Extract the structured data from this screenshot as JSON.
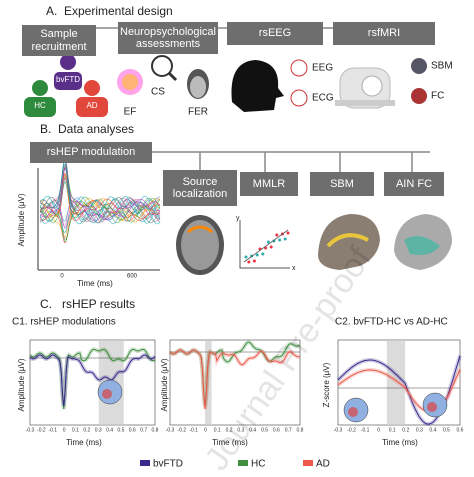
{
  "panel_a": {
    "letter": "A.",
    "title": "Experimental design",
    "steps": [
      "Sample recruitment",
      "Neuropsychological assessments",
      "rsEEG",
      "rsfMRI"
    ],
    "groups": [
      "bvFTD",
      "HC",
      "AD"
    ],
    "assessments": [
      "EF",
      "CS",
      "FER"
    ],
    "signals": [
      "EEG",
      "ECG"
    ],
    "mri": [
      "SBM",
      "FC"
    ]
  },
  "panel_b": {
    "letter": "B.",
    "title": "Data analyses",
    "main": "rsHEP modulation",
    "analyses": [
      "Source localization",
      "MMLR",
      "SBM",
      "AIN FC"
    ],
    "y_label": "Amplitude (μV)",
    "x_label": "Time (ms)",
    "x_ticks": [
      "0",
      "600"
    ],
    "scatter_axes": [
      "y",
      "x"
    ]
  },
  "panel_c": {
    "letter": "C.",
    "title": "rsHEP results",
    "c1_title": "C1. rsHEP modulations",
    "c2_title": "C2. bvFTD-HC vs AD-HC",
    "y_label": "Amplitude (μV)",
    "z_label": "Z-score (μV)",
    "x_label": "Time (ms)",
    "x_ticks": [
      "-0.3",
      "-0.2",
      "-0.1",
      "0",
      "0.1",
      "0.2",
      "0.3",
      "0.4",
      "0.5",
      "0.6",
      "0.7",
      "0.8"
    ],
    "c2_x_ticks": [
      "-0.3",
      "-0.2",
      "-0.1",
      "0",
      "0.1",
      "0.2",
      "0.3",
      "0.4",
      "0.5",
      "0.6"
    ],
    "legend": [
      "bvFTD",
      "HC",
      "AD"
    ]
  },
  "watermark": "Journal Pre-proof"
}
